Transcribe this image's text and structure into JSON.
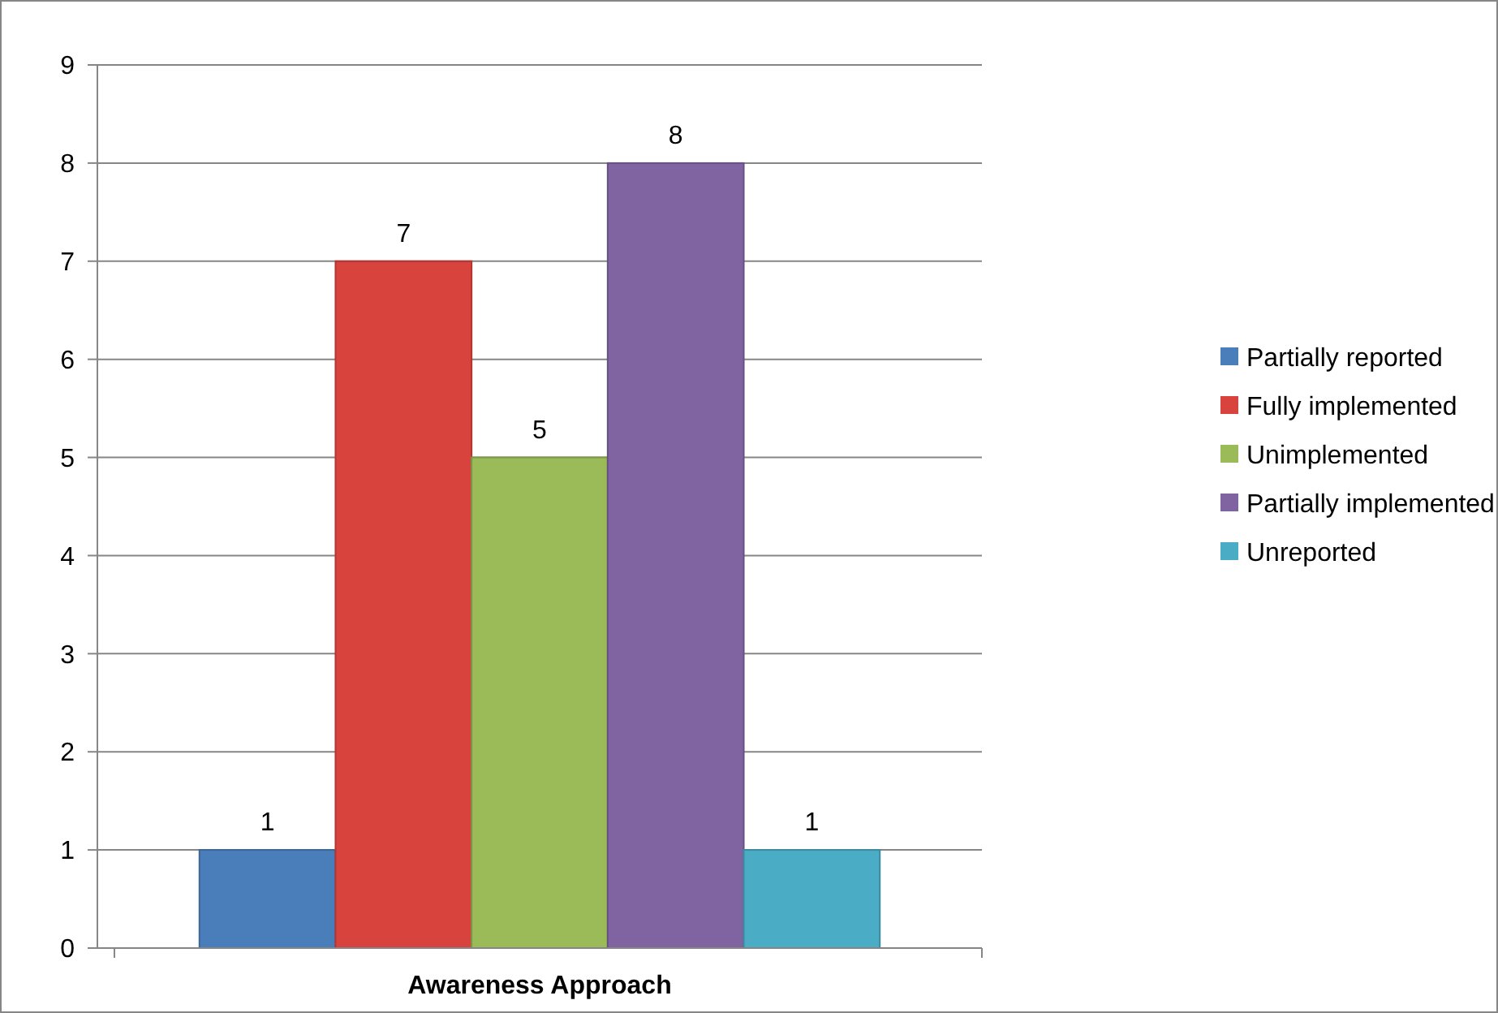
{
  "chart_data": {
    "type": "bar",
    "categories": [
      "Awareness Approach"
    ],
    "series": [
      {
        "name": "Partially reported",
        "color": "#4a7ebb",
        "values": [
          1
        ]
      },
      {
        "name": "Fully implemented",
        "color": "#d9433e",
        "values": [
          7
        ]
      },
      {
        "name": "Unimplemented",
        "color": "#9bbb59",
        "values": [
          5
        ]
      },
      {
        "name": "Partially implemented",
        "color": "#8064a2",
        "values": [
          8
        ]
      },
      {
        "name": "Unreported",
        "color": "#4bacc6",
        "values": [
          1
        ]
      }
    ],
    "ylim": [
      0,
      9
    ],
    "yticks": [
      0,
      1,
      2,
      3,
      4,
      5,
      6,
      7,
      8,
      9
    ],
    "grid": "y",
    "legend": "right",
    "data_labels": true
  }
}
